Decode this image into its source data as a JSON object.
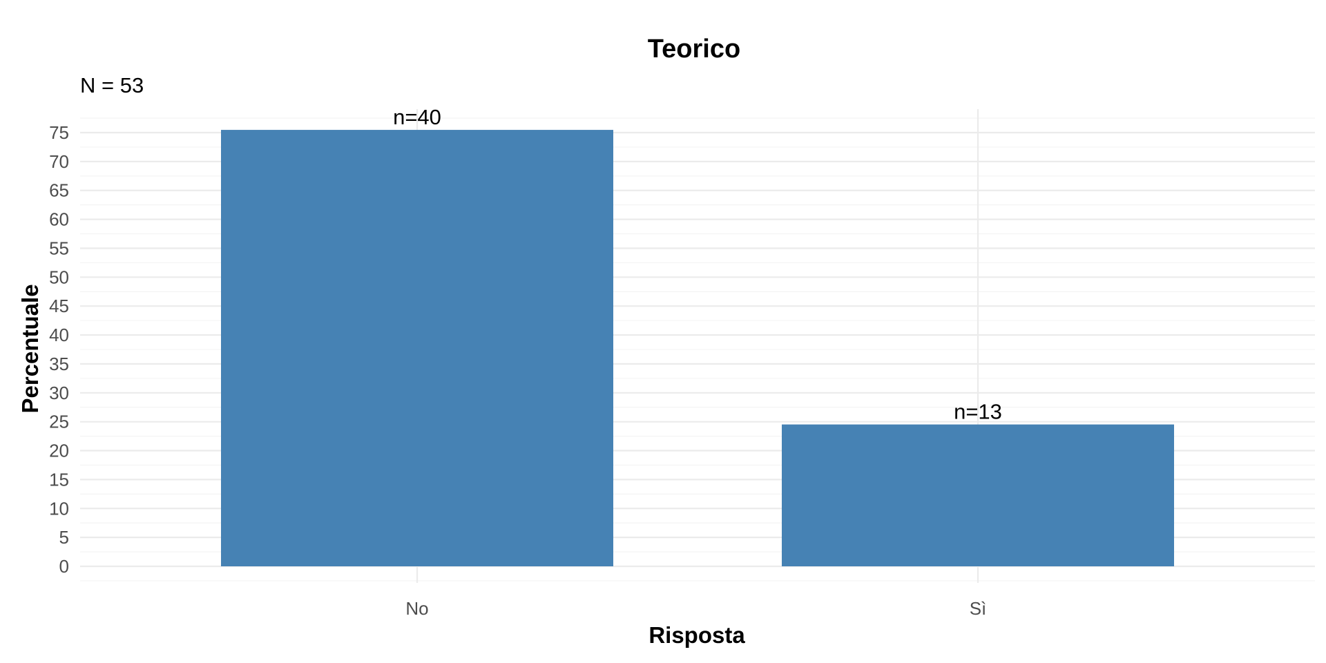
{
  "chart_data": {
    "type": "bar",
    "title": "Teorico",
    "subtitle": "N = 53",
    "xlabel": "Risposta",
    "ylabel": "Percentuale",
    "categories": [
      "No",
      "Sì"
    ],
    "values": [
      75.47,
      24.53
    ],
    "bar_labels": [
      "n=40",
      "n=13"
    ],
    "ylim": [
      0,
      78
    ],
    "yticks": [
      0,
      5,
      10,
      15,
      20,
      25,
      30,
      35,
      40,
      45,
      50,
      55,
      60,
      65,
      70,
      75
    ],
    "grid": true,
    "legend": "none",
    "colors": {
      "bar": "#4682b4"
    }
  }
}
